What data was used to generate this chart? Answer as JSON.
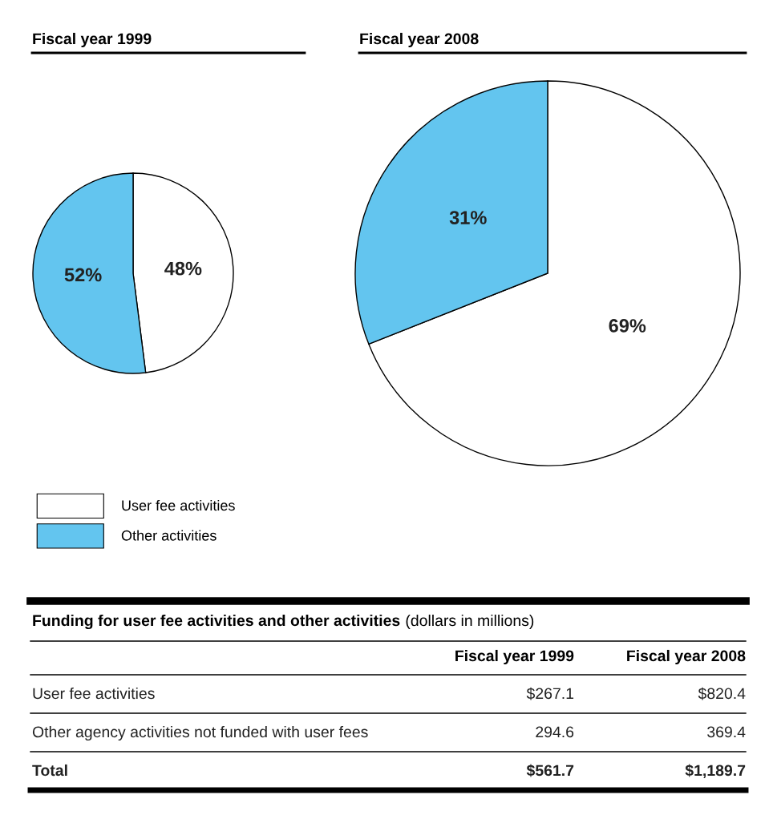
{
  "chart_data": [
    {
      "type": "pie",
      "title": "Fiscal year 1999",
      "categories": [
        "User fee activities",
        "Other activities"
      ],
      "values": [
        48,
        52
      ],
      "colors": [
        "#ffffff",
        "#63c5ef"
      ],
      "value_labels": [
        "48%",
        "52%"
      ],
      "legend": "bottom left"
    },
    {
      "type": "pie",
      "title": "Fiscal year 2008",
      "values": [
        69,
        31
      ],
      "colors": [
        "#ffffff",
        "#63c5ef"
      ],
      "value_labels": [
        "69%",
        "31%"
      ]
    },
    {
      "type": "other",
      "title": "Funding for user fee activities and other activities",
      "subtitle": "(dollars in millions)",
      "categories": [
        "Fiscal year 1999",
        "Fiscal year 2008"
      ],
      "annotations": [
        "User fee activities",
        "$267.1",
        "$820.4",
        "Other agency activities not funded with user fees",
        "294.6",
        "369.4",
        "Total",
        "$561.7",
        "$1,189.7"
      ]
    }
  ]
}
